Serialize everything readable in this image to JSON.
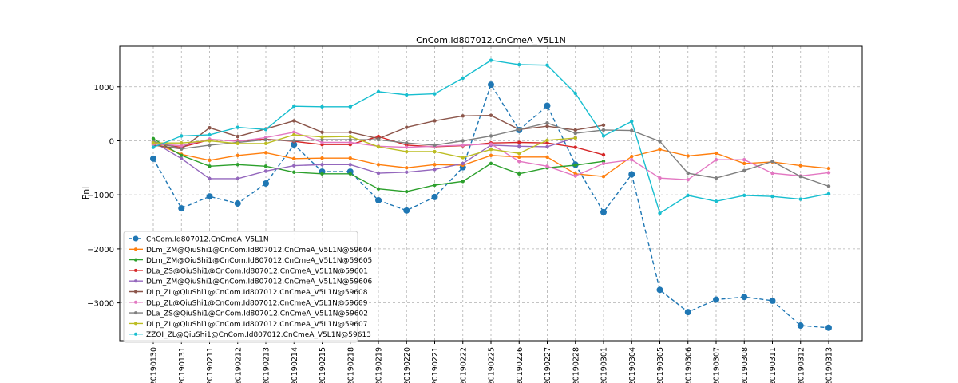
{
  "chart_data": {
    "type": "line",
    "title": "CnCom.Id807012.CnCmeA_V5L1N",
    "xlabel": "",
    "ylabel": "Pnl",
    "ylim": [
      -3700,
      1750
    ],
    "yticks": [
      1000,
      0,
      -1000,
      -2000,
      -3000
    ],
    "ytick_labels": [
      "1000",
      "0",
      "−1000",
      "−2000",
      "−3000"
    ],
    "grid": true,
    "legend_position": "lower-left",
    "categories": [
      "20190130",
      "20190131",
      "20190211",
      "20190212",
      "20190213",
      "20190214",
      "20190215",
      "20190218",
      "20190219",
      "20190220",
      "20190221",
      "20190222",
      "20190225",
      "20190226",
      "20190227",
      "20190228",
      "20190301",
      "20190304",
      "20190305",
      "20190306",
      "20190307",
      "20190308",
      "20190311",
      "20190312",
      "20190313"
    ],
    "series": [
      {
        "name": "CnCom.Id807012.CnCmeA_V5L1N",
        "color": "#1f77b4",
        "style": "dashed",
        "marker": "large",
        "values": [
          -330,
          -1250,
          -1030,
          -1160,
          -790,
          -70,
          -570,
          -570,
          -1100,
          -1290,
          -1040,
          -490,
          1040,
          200,
          650,
          -440,
          -1320,
          -620,
          -2760,
          -3170,
          -2940,
          -2890,
          -2960,
          -3420,
          -3460
        ]
      },
      {
        "name": "DLm_ZM@QiuShi1@CnCom.Id807012.CnCmeA_V5L1N@59604",
        "color": "#ff7f0e",
        "style": "solid",
        "marker": "small",
        "values": [
          -30,
          -250,
          -360,
          -270,
          -220,
          -330,
          -320,
          -320,
          -440,
          -500,
          -440,
          -450,
          -270,
          -300,
          -300,
          -610,
          -660,
          -290,
          -160,
          -280,
          -230,
          -420,
          -390,
          -460,
          -510
        ]
      },
      {
        "name": "DLm_ZM@QiuShi1@CnCom.Id807012.CnCmeA_V5L1N@59605",
        "color": "#2ca02c",
        "style": "solid",
        "marker": "small",
        "values": [
          40,
          -270,
          -470,
          -440,
          -470,
          -580,
          -610,
          -610,
          -890,
          -940,
          -820,
          -750,
          -420,
          -610,
          -500,
          -450,
          -380,
          null,
          null,
          null,
          null,
          null,
          null,
          null,
          null
        ]
      },
      {
        "name": "DLa_ZS@QiuShi1@CnCom.Id807012.CnCmeA_V5L1N@59601",
        "color": "#d62728",
        "style": "solid",
        "marker": "small",
        "values": [
          -50,
          -120,
          20,
          0,
          30,
          -10,
          -70,
          -70,
          80,
          -80,
          -110,
          -90,
          -40,
          -30,
          -40,
          -120,
          -260,
          null,
          null,
          null,
          null,
          null,
          null,
          null,
          null
        ]
      },
      {
        "name": "DLm_ZM@QiuShi1@CnCom.Id807012.CnCmeA_V5L1N@59606",
        "color": "#9467bd",
        "style": "solid",
        "marker": "small",
        "values": [
          -20,
          -330,
          -700,
          -700,
          -560,
          -460,
          -440,
          -440,
          -600,
          -580,
          -530,
          -420,
          -80,
          -100,
          -110,
          60,
          null,
          null,
          null,
          null,
          null,
          null,
          null,
          null,
          null
        ]
      },
      {
        "name": "DLp_ZL@QiuShi1@CnCom.Id807012.CnCmeA_V5L1N@59608",
        "color": "#8c564b",
        "style": "solid",
        "marker": "small",
        "values": [
          -80,
          -150,
          240,
          80,
          220,
          370,
          160,
          160,
          40,
          250,
          370,
          460,
          470,
          210,
          270,
          200,
          290,
          null,
          null,
          null,
          null,
          null,
          null,
          null,
          null
        ]
      },
      {
        "name": "DLp_ZL@QiuShi1@CnCom.Id807012.CnCmeA_V5L1N@59609",
        "color": "#e377c2",
        "style": "solid",
        "marker": "small",
        "values": [
          -60,
          -90,
          30,
          -10,
          60,
          160,
          -30,
          -30,
          -100,
          -120,
          -100,
          -80,
          -60,
          -380,
          -470,
          -650,
          -420,
          -350,
          -690,
          -720,
          -350,
          -350,
          -600,
          -650,
          -590
        ]
      },
      {
        "name": "DLa_ZS@QiuShi1@CnCom.Id807012.CnCmeA_V5L1N@59602",
        "color": "#7f7f7f",
        "style": "solid",
        "marker": "small",
        "values": [
          -10,
          -150,
          -80,
          -30,
          20,
          0,
          20,
          20,
          20,
          -40,
          -80,
          0,
          90,
          210,
          330,
          140,
          200,
          190,
          -10,
          -600,
          -690,
          -550,
          -380,
          -660,
          -840
        ]
      },
      {
        "name": "DLp_ZL@QiuShi1@CnCom.Id807012.CnCmeA_V5L1N@59607",
        "color": "#bcbd22",
        "style": "solid",
        "marker": "small",
        "values": [
          -40,
          -40,
          0,
          -50,
          -50,
          110,
          70,
          80,
          -110,
          -200,
          -200,
          -310,
          -160,
          -230,
          10,
          50,
          null,
          null,
          null,
          null,
          null,
          null,
          null,
          null,
          null
        ]
      },
      {
        "name": "ZZOI_ZL@QiuShi1@CnCom.Id807012.CnCmeA_V5L1N@59613",
        "color": "#17becf",
        "style": "solid",
        "marker": "small",
        "values": [
          -120,
          90,
          110,
          250,
          210,
          640,
          630,
          630,
          910,
          850,
          870,
          1160,
          1490,
          1410,
          1400,
          880,
          90,
          360,
          -1340,
          -1010,
          -1120,
          -1010,
          -1030,
          -1080,
          -980
        ]
      }
    ]
  }
}
